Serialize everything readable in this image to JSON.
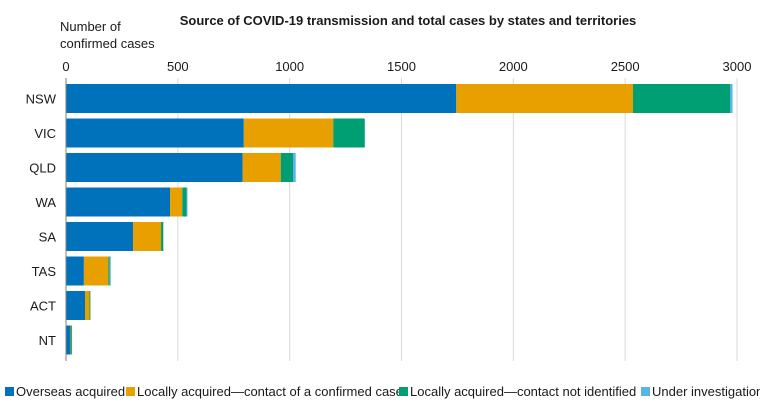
{
  "chart_data": {
    "type": "bar",
    "orientation": "horizontal",
    "stacked": true,
    "title": "Source of COVID-19 transmission and total cases by states and territories",
    "axis_title_lines": [
      "Number of",
      "confirmed cases"
    ],
    "xlim": [
      0,
      3000
    ],
    "x_ticks": [
      0,
      500,
      1000,
      1500,
      2000,
      2500,
      3000
    ],
    "x_axis_position": "top",
    "grid": "vertical",
    "legend_position": "bottom",
    "categories": [
      "NSW",
      "VIC",
      "QLD",
      "WA",
      "SA",
      "TAS",
      "ACT",
      "NT"
    ],
    "series": [
      {
        "name": "Overseas acquired",
        "color": "#0072BC",
        "values": [
          1745,
          795,
          790,
          465,
          300,
          80,
          85,
          20
        ]
      },
      {
        "name": "Locally acquired—contact of a confirmed case",
        "color": "#E8A000",
        "values": [
          790,
          400,
          170,
          55,
          125,
          110,
          20,
          3
        ]
      },
      {
        "name": "Locally acquired—contact not identified",
        "color": "#009E73",
        "values": [
          435,
          140,
          55,
          20,
          10,
          5,
          4,
          4
        ]
      },
      {
        "name": "Under investigation",
        "color": "#56B4E9",
        "values": [
          10,
          2,
          12,
          3,
          0,
          5,
          0,
          0
        ]
      }
    ]
  }
}
